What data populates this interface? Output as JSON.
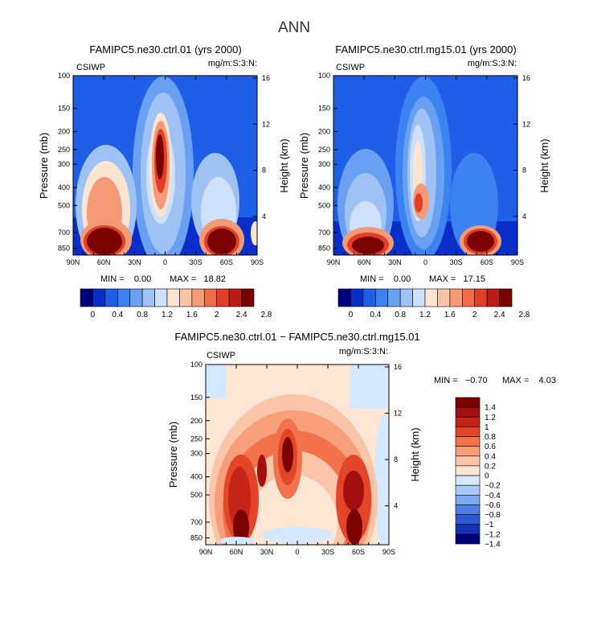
{
  "page_title": "ANN",
  "chart_data": [
    {
      "type": "heatmap",
      "id": "p1",
      "title": "FAMIPC5.ne30.ctrl.01 (yrs 2000)",
      "left_label": "CSIWP",
      "right_label": "mg/m:S:3:N:",
      "ylabel": "Pressure (mb)",
      "y2label": "Height (km)",
      "x_ticks": [
        "90N",
        "60N",
        "30N",
        "0",
        "30S",
        "60S",
        "90S"
      ],
      "x_values": [
        90,
        60,
        30,
        0,
        -30,
        -60,
        -90
      ],
      "y_ticks": [
        "100",
        "150",
        "200",
        "250",
        "300",
        "400",
        "500",
        "700",
        "850"
      ],
      "y_values": [
        100,
        150,
        200,
        250,
        300,
        400,
        500,
        700,
        850
      ],
      "ylim": [
        100,
        925
      ],
      "height_ticks": [
        "4",
        "8",
        "12",
        "16"
      ],
      "height_values": [
        4,
        8,
        12,
        16
      ],
      "min_text": "MIN =    0.00",
      "max_text": "MAX =   18.82",
      "colorbar_labels": [
        "0",
        "0.4",
        "0.8",
        "1.2",
        "1.6",
        "2",
        "2.4",
        "2.8"
      ]
    },
    {
      "type": "heatmap",
      "id": "p2",
      "title": "FAMIPC5.ne30.ctrl.mg15.01 (yrs 2000)",
      "left_label": "CSIWP",
      "right_label": "mg/m:S:3:N:",
      "ylabel": "Pressure (mb)",
      "y2label": "Height (km)",
      "x_ticks": [
        "90N",
        "60N",
        "30N",
        "0",
        "30S",
        "60S",
        "90S"
      ],
      "x_values": [
        90,
        60,
        30,
        0,
        -30,
        -60,
        -90
      ],
      "y_ticks": [
        "100",
        "150",
        "200",
        "250",
        "300",
        "400",
        "500",
        "700",
        "850"
      ],
      "y_values": [
        100,
        150,
        200,
        250,
        300,
        400,
        500,
        700,
        850
      ],
      "ylim": [
        100,
        925
      ],
      "height_ticks": [
        "4",
        "8",
        "12",
        "16"
      ],
      "height_values": [
        4,
        8,
        12,
        16
      ],
      "min_text": "MIN =    0.00",
      "max_text": "MAX =   17.15",
      "colorbar_labels": [
        "0",
        "0.4",
        "0.8",
        "1.2",
        "1.6",
        "2",
        "2.4",
        "2.8"
      ]
    },
    {
      "type": "heatmap",
      "id": "p3",
      "title": "FAMIPC5.ne30.ctrl.01 − FAMIPC5.ne30.ctrl.mg15.01",
      "left_label": "CSIWP",
      "right_label": "mg/m:S:3:N:",
      "ylabel": "Pressure (mb)",
      "y2label": "Height (km)",
      "x_ticks": [
        "90N",
        "60N",
        "30N",
        "0",
        "30S",
        "60S",
        "90S"
      ],
      "x_values": [
        90,
        60,
        30,
        0,
        -30,
        -60,
        -90
      ],
      "y_ticks": [
        "100",
        "150",
        "200",
        "250",
        "300",
        "400",
        "500",
        "700",
        "850"
      ],
      "y_values": [
        100,
        150,
        200,
        250,
        300,
        400,
        500,
        700,
        850
      ],
      "ylim": [
        100,
        925
      ],
      "height_ticks": [
        "4",
        "8",
        "12",
        "16"
      ],
      "height_values": [
        4,
        8,
        12,
        16
      ],
      "min_text": "MIN =   −0.70",
      "max_text": "MAX =    4.03",
      "colorbar_labels": [
        "1.4",
        "1.2",
        "1",
        "0.8",
        "0.6",
        "0.4",
        "0.2",
        "0",
        "−0.2",
        "−0.4",
        "−0.6",
        "−0.8",
        "−1",
        "−1.2",
        "−1.4"
      ]
    }
  ],
  "colors": {
    "abs_scale": [
      "#00007a",
      "#0a2fc8",
      "#1f5ee6",
      "#3c82f0",
      "#6aa0f2",
      "#9fc2f5",
      "#cfe0fa",
      "#fbe5d2",
      "#f9c4a4",
      "#f59a76",
      "#ef6c4a",
      "#e0402a",
      "#bb1c16",
      "#7b0000"
    ],
    "diff_scale": [
      "#7b0000",
      "#a30f0f",
      "#c62418",
      "#e2452a",
      "#f2724c",
      "#f89e7b",
      "#fbc6a8",
      "#fde6d3",
      "#d6e8fb",
      "#a8c8f5",
      "#7ca8ef",
      "#4e80e6",
      "#2d59d6",
      "#1434b4",
      "#00007a"
    ]
  }
}
